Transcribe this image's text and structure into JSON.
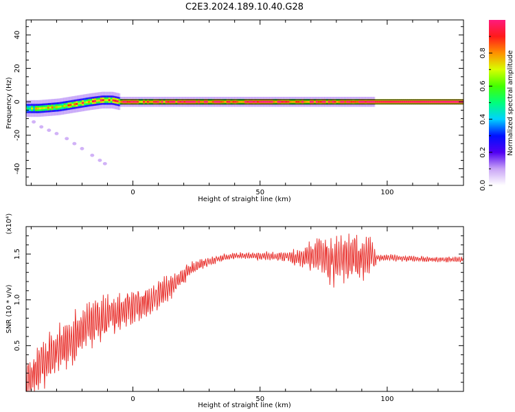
{
  "title": "C2E3.2024.189.10.40.G28",
  "chart_data": [
    {
      "type": "heatmap",
      "title": "C2E3.2024.189.10.40.G28",
      "xlabel": "Height of straight line (km)",
      "ylabel": "Frequency (Hz)",
      "xlim": [
        -42,
        130
      ],
      "ylim": [
        -50,
        49
      ],
      "xticks": [
        0,
        50,
        100
      ],
      "yticks": [
        -40,
        -20,
        0,
        20,
        40
      ],
      "grid": false,
      "colorbar": {
        "label": "Normalized spectral amplitude",
        "range": [
          0,
          1
        ],
        "ticks": [
          0.0,
          0.2,
          0.4,
          0.6,
          0.8
        ],
        "colormap": [
          "#ffffff",
          "#c9a4f6",
          "#5000f2",
          "#0010ff",
          "#00d2ff",
          "#00ff7a",
          "#44ff00",
          "#d8ff00",
          "#ff9000",
          "#ff1a1a",
          "#ff1a7c"
        ]
      },
      "ridge": [
        {
          "x": -42,
          "y": -4,
          "w": 0.6
        },
        {
          "x": -37,
          "y": -4,
          "w": 0.65
        },
        {
          "x": -33,
          "y": -3.5,
          "w": 0.7
        },
        {
          "x": -29,
          "y": -3,
          "w": 0.7
        },
        {
          "x": -25,
          "y": -2,
          "w": 0.75
        },
        {
          "x": -21,
          "y": -1,
          "w": 0.8
        },
        {
          "x": -17,
          "y": 0,
          "w": 0.85
        },
        {
          "x": -12,
          "y": 1,
          "w": 0.85
        },
        {
          "x": -8,
          "y": 1,
          "w": 0.85
        },
        {
          "x": -5,
          "y": 0,
          "w": 0.9
        },
        {
          "x": 0,
          "y": 0,
          "w": 0.9
        },
        {
          "x": 10,
          "y": 0,
          "w": 0.9
        },
        {
          "x": 20,
          "y": 0,
          "w": 0.95
        },
        {
          "x": 40,
          "y": 0,
          "w": 0.95
        },
        {
          "x": 60,
          "y": 0,
          "w": 0.95
        },
        {
          "x": 80,
          "y": 0,
          "w": 0.95
        },
        {
          "x": 95,
          "y": 0,
          "w": 0.95
        },
        {
          "x": 130,
          "y": 0,
          "w": 1.0
        }
      ],
      "trail": [
        {
          "x": -39,
          "y": -12
        },
        {
          "x": -36,
          "y": -15
        },
        {
          "x": -33,
          "y": -17
        },
        {
          "x": -30,
          "y": -19
        },
        {
          "x": -26,
          "y": -22
        },
        {
          "x": -23,
          "y": -25
        },
        {
          "x": -20,
          "y": -28
        },
        {
          "x": -16,
          "y": -32
        },
        {
          "x": -13,
          "y": -35
        },
        {
          "x": -11,
          "y": -37
        }
      ]
    },
    {
      "type": "line",
      "xlabel": "Height of straight line (km)",
      "ylabel": "SNR (10 * v/v)",
      "scale_label": "(x10⁴)",
      "xlim": [
        -42,
        130
      ],
      "ylim": [
        0,
        1.8
      ],
      "xticks": [
        0,
        50,
        100
      ],
      "yticks": [
        0.5,
        1.0,
        1.5
      ],
      "grid": false,
      "series": [
        {
          "color": "#e8302c",
          "trend": [
            {
              "x": -42,
              "y": 0.12
            },
            {
              "x": -38,
              "y": 0.22
            },
            {
              "x": -34,
              "y": 0.36
            },
            {
              "x": -30,
              "y": 0.45
            },
            {
              "x": -26,
              "y": 0.5
            },
            {
              "x": -22,
              "y": 0.6
            },
            {
              "x": -18,
              "y": 0.72
            },
            {
              "x": -14,
              "y": 0.78
            },
            {
              "x": -10,
              "y": 0.82
            },
            {
              "x": -6,
              "y": 0.85
            },
            {
              "x": -2,
              "y": 0.9
            },
            {
              "x": 2,
              "y": 0.95
            },
            {
              "x": 6,
              "y": 0.98
            },
            {
              "x": 10,
              "y": 1.05
            },
            {
              "x": 14,
              "y": 1.12
            },
            {
              "x": 18,
              "y": 1.2
            },
            {
              "x": 22,
              "y": 1.32
            },
            {
              "x": 26,
              "y": 1.38
            },
            {
              "x": 30,
              "y": 1.42
            },
            {
              "x": 35,
              "y": 1.46
            },
            {
              "x": 40,
              "y": 1.48
            },
            {
              "x": 50,
              "y": 1.48
            },
            {
              "x": 60,
              "y": 1.47
            },
            {
              "x": 70,
              "y": 1.47
            },
            {
              "x": 80,
              "y": 1.44
            },
            {
              "x": 90,
              "y": 1.44
            },
            {
              "x": 95,
              "y": 1.46
            },
            {
              "x": 100,
              "y": 1.46
            },
            {
              "x": 110,
              "y": 1.45
            },
            {
              "x": 120,
              "y": 1.44
            },
            {
              "x": 130,
              "y": 1.44
            }
          ],
          "amplitude": [
            {
              "x": -42,
              "y": 0.3
            },
            {
              "x": -20,
              "y": 0.32
            },
            {
              "x": 0,
              "y": 0.22
            },
            {
              "x": 15,
              "y": 0.15
            },
            {
              "x": 25,
              "y": 0.07
            },
            {
              "x": 35,
              "y": 0.04
            },
            {
              "x": 60,
              "y": 0.06
            },
            {
              "x": 72,
              "y": 0.2
            },
            {
              "x": 80,
              "y": 0.32
            },
            {
              "x": 88,
              "y": 0.28
            },
            {
              "x": 94,
              "y": 0.25
            },
            {
              "x": 96,
              "y": 0.04
            },
            {
              "x": 130,
              "y": 0.03
            }
          ]
        }
      ]
    }
  ]
}
